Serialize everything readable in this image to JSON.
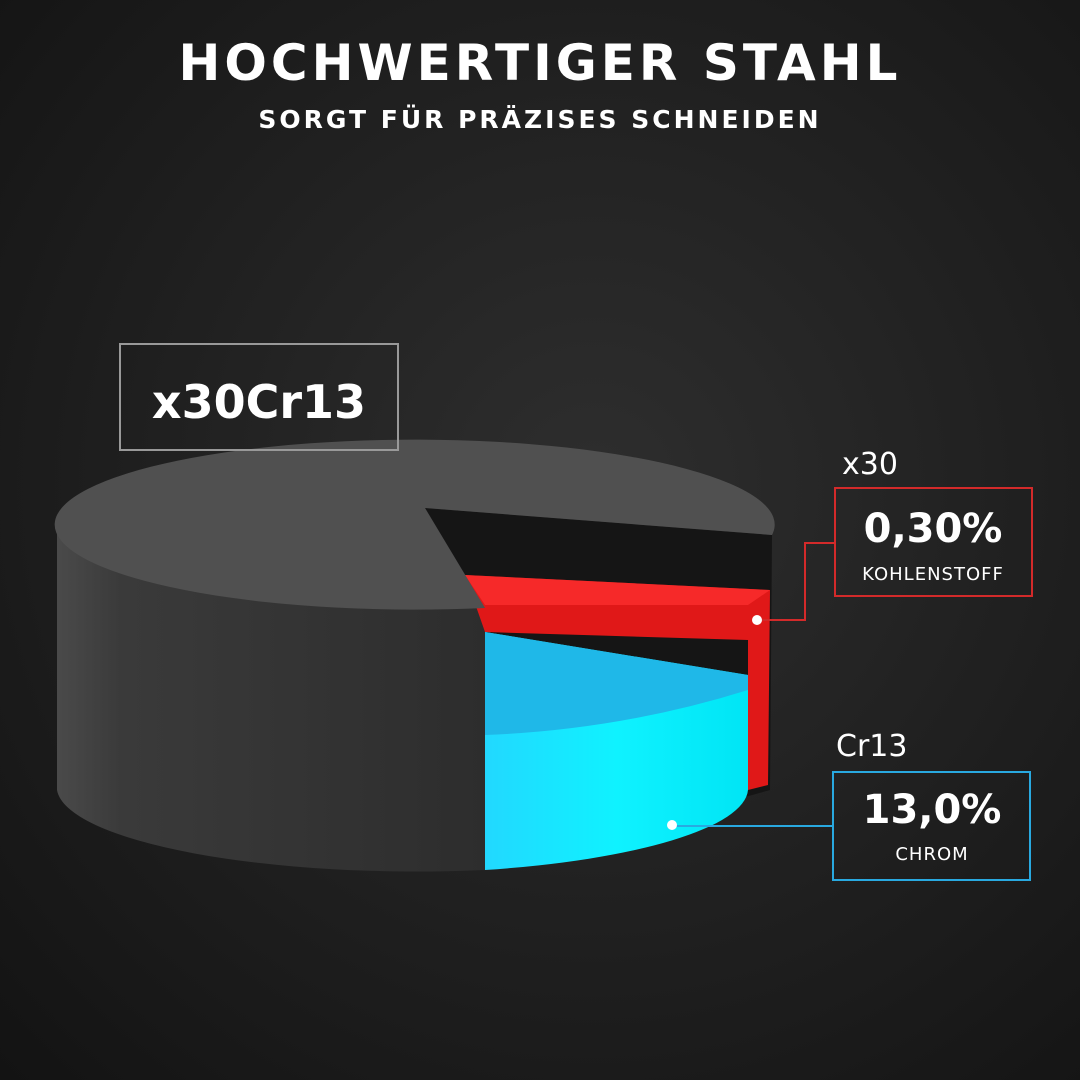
{
  "header": {
    "title": "HOCHWERTIGER STAHL",
    "subtitle": "SORGT FÜR PRÄZISES SCHNEIDEN"
  },
  "badge": {
    "label": "x30Cr13"
  },
  "callouts": [
    {
      "code": "x30",
      "value": "0,30%",
      "label": "KOHLENSTOFF"
    },
    {
      "code": "Cr13",
      "value": "13,0%",
      "label": "CHROM"
    }
  ]
}
